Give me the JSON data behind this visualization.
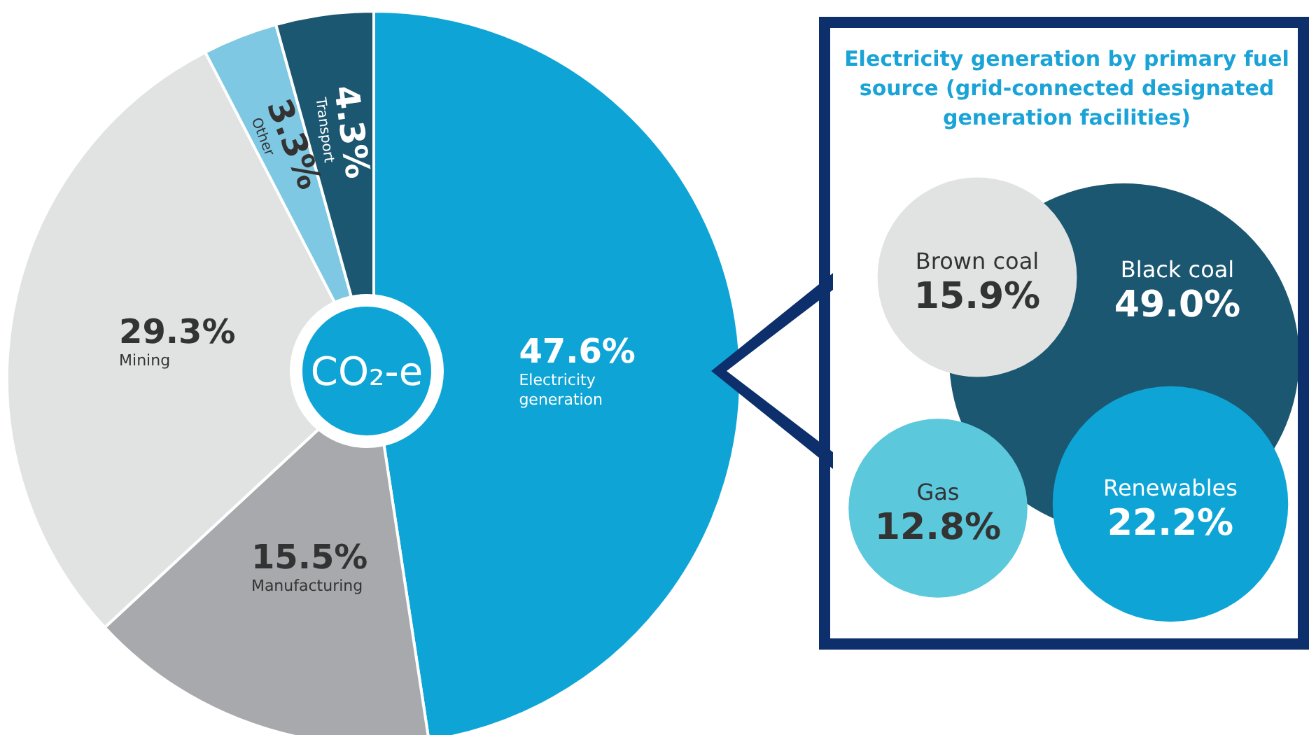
{
  "chart_data": [
    {
      "type": "pie",
      "categories": [
        "Electricity generation",
        "Manufacturing",
        "Mining",
        "Other",
        "Transport"
      ],
      "values": [
        47.6,
        15.5,
        29.3,
        3.3,
        4.3
      ],
      "value_labels": [
        "47.6%",
        "15.5%",
        "29.3%",
        "3.3%",
        "4.3%"
      ],
      "colors": [
        "#0ea5d6",
        "#a7a9ac",
        "#e1e2e2",
        "#7ec8e3",
        "#1b5770"
      ],
      "annotations": [
        "CO₂-e"
      ]
    },
    {
      "type": "other",
      "title": "Electricity generation by primary fuel source (grid-connected designated generation facilities)",
      "categories": [
        "Brown coal",
        "Black coal",
        "Gas",
        "Renewables"
      ],
      "values": [
        15.9,
        49.0,
        12.8,
        22.2
      ],
      "value_labels": [
        "15.9%",
        "49.0%",
        "12.8%",
        "22.2%"
      ],
      "colors": [
        "#e1e2e2",
        "#1b5770",
        "#5bc8dc",
        "#0ea5d6"
      ]
    }
  ]
}
